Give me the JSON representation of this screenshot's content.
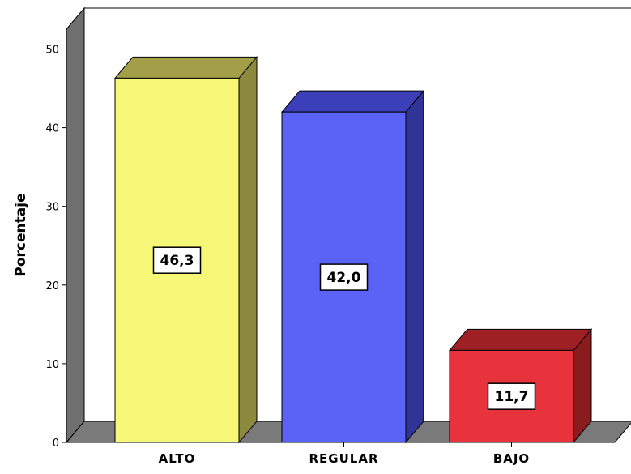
{
  "chart_data": {
    "type": "bar",
    "categories": [
      "ALTO",
      "REGULAR",
      "BAJO"
    ],
    "values": [
      46.3,
      42.0,
      11.7
    ],
    "data_labels": [
      "46,3",
      "42,0",
      "11,7"
    ],
    "title": "",
    "xlabel": "",
    "ylabel": "Porcentaje",
    "ylim": [
      0,
      50
    ],
    "yticks": [
      0,
      10,
      20,
      30,
      40,
      50
    ],
    "ytick_labels": [
      "0",
      "10",
      "20",
      "30",
      "40",
      "50"
    ],
    "grid": false,
    "style": "3d",
    "colors": {
      "bars": [
        "#f7f777",
        "#5b63f7",
        "#e8333d"
      ],
      "bar_tops": [
        "#a39f49",
        "#3b40b8",
        "#9f2024"
      ],
      "bar_sides": [
        "#8c8a3f",
        "#2f3496",
        "#8a1c20"
      ],
      "back_wall": "#ffffff",
      "side_wall": "#6f6f6f",
      "floor": "#7a7a7a"
    }
  }
}
